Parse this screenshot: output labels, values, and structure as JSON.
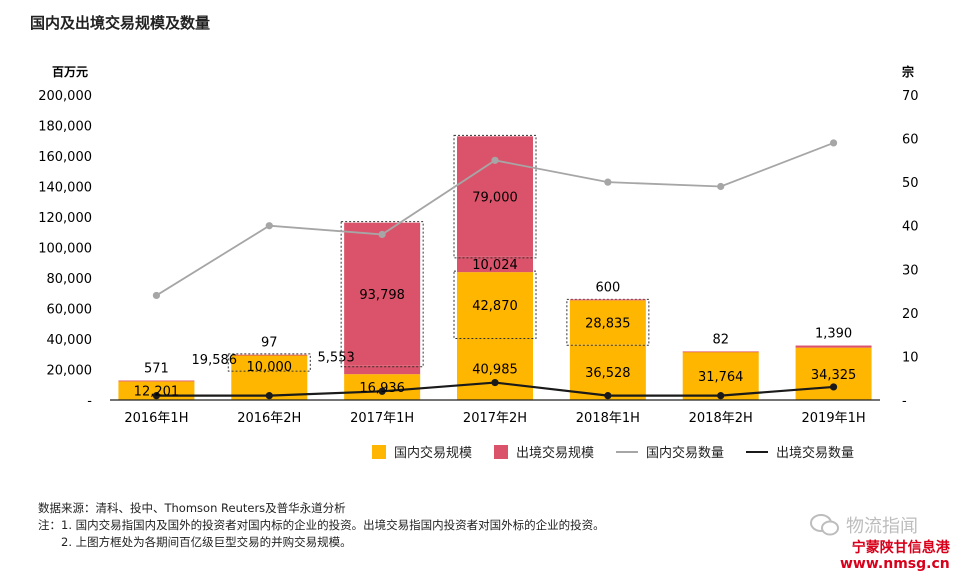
{
  "title": "国内及出境交易规模及数量",
  "chart_data": {
    "type": "bar",
    "stacked": true,
    "categories": [
      "2016年1H",
      "2016年2H",
      "2017年1H",
      "2017年2H",
      "2018年1H",
      "2018年2H",
      "2019年1H"
    ],
    "left_axis": {
      "unit": "百万元",
      "ylim": [
        0,
        200000
      ],
      "ticks": [
        "-",
        "20,000",
        "40,000",
        "60,000",
        "80,000",
        "100,000",
        "120,000",
        "140,000",
        "160,000",
        "180,000",
        "200,000"
      ]
    },
    "right_axis": {
      "unit": "宗",
      "ylim": [
        0,
        70
      ],
      "ticks": [
        "-",
        "10",
        "20",
        "30",
        "40",
        "50",
        "60",
        "70"
      ]
    },
    "series": [
      {
        "name": "国内交易规模",
        "kind": "bar",
        "axis": "left",
        "color": "#FFB600",
        "segments": [
          [
            {
              "value": 12201,
              "label": "12,201",
              "boxed": false
            }
          ],
          [
            {
              "value": 19586,
              "label": "19,586",
              "boxed": false
            },
            {
              "value": 10000,
              "label": "10,000",
              "boxed": true
            }
          ],
          [
            {
              "value": 16936,
              "label": "16,936",
              "boxed": false
            }
          ],
          [
            {
              "value": 40985,
              "label": "40,985",
              "boxed": false
            },
            {
              "value": 42870,
              "label": "42,870",
              "boxed": true
            }
          ],
          [
            {
              "value": 36528,
              "label": "36,528",
              "boxed": false
            },
            {
              "value": 28835,
              "label": "28,835",
              "boxed": true
            }
          ],
          [
            {
              "value": 31764,
              "label": "31,764",
              "boxed": false
            }
          ],
          [
            {
              "value": 34325,
              "label": "34,325",
              "boxed": false
            }
          ]
        ]
      },
      {
        "name": "出境交易规模",
        "kind": "bar",
        "axis": "left",
        "color": "#DB536A",
        "segments": [
          [
            {
              "value": 571,
              "label": "571",
              "boxed": false
            }
          ],
          [
            {
              "value": 97,
              "label": "97",
              "boxed": false
            }
          ],
          [
            {
              "value": 5553,
              "label": "5,553",
              "boxed": false
            },
            {
              "value": 93798,
              "label": "93,798",
              "boxed": true
            }
          ],
          [
            {
              "value": 10024,
              "label": "10,024",
              "boxed": false
            },
            {
              "value": 79000,
              "label": "79,000",
              "boxed": true
            }
          ],
          [
            {
              "value": 600,
              "label": "600",
              "boxed": false
            }
          ],
          [
            {
              "value": 82,
              "label": "82",
              "boxed": false
            }
          ],
          [
            {
              "value": 1390,
              "label": "1,390",
              "boxed": false
            }
          ]
        ]
      },
      {
        "name": "国内交易数量",
        "kind": "line",
        "axis": "right",
        "color": "#A6A6A6",
        "values": [
          24,
          40,
          38,
          55,
          50,
          49,
          59
        ]
      },
      {
        "name": "出境交易数量",
        "kind": "line",
        "axis": "right",
        "color": "#1A1A1A",
        "values": [
          1,
          1,
          2,
          4,
          1,
          1,
          3
        ]
      }
    ],
    "legend_position": "bottom",
    "grid": false
  },
  "notes": [
    "数据来源：清科、投中、Thomson Reuters及普华永道分析",
    "注：1. 国内交易指国内及国外的投资者对国内标的企业的投资。出境交易指国内投资者对国外标的企业的投资。",
    "　　2. 上图方框处为各期间百亿级巨型交易的并购交易规模。"
  ],
  "watermark": {
    "logo_icon": "wechat-icon",
    "text": "物流指闻",
    "site_name": "宁蒙陕甘信息港",
    "site_url": "www.nmsg.cn"
  }
}
